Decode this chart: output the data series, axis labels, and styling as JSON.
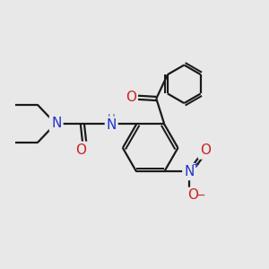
{
  "bg_color": "#e8e8e8",
  "bond_color": "#1a1a1a",
  "bond_width": 1.6,
  "text_colors": {
    "N": "#2233cc",
    "O": "#cc2222",
    "H": "#447777",
    "C": "#1a1a1a"
  },
  "font_size_atom": 11,
  "font_size_small": 8.5,
  "canvas_xlim": [
    0,
    10
  ],
  "canvas_ylim": [
    0,
    10
  ]
}
